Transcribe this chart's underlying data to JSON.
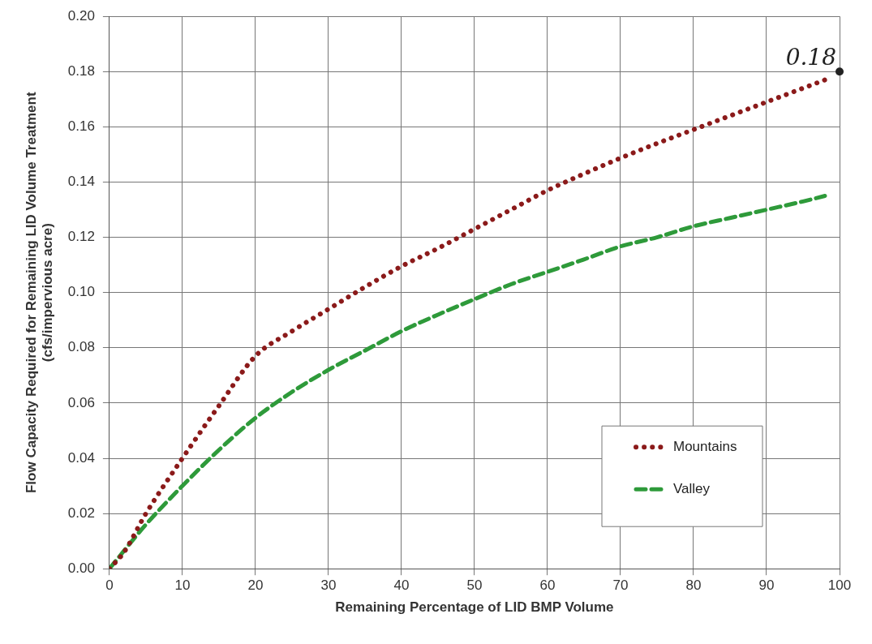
{
  "chart_data": {
    "type": "line",
    "xlabel": "Remaining Percentage of LID BMP Volume",
    "ylabel": "Flow Capacity Required for Remaining LID Volume Treatment\n(cfs/impervious acre)",
    "xlim": [
      0,
      100
    ],
    "xticks": [
      0,
      10,
      20,
      30,
      40,
      50,
      60,
      70,
      80,
      90,
      100
    ],
    "ylim": [
      0,
      0.2
    ],
    "yticks": [
      {
        "value": 0,
        "label": "0.00"
      },
      {
        "value": 0.02,
        "label": "0.02"
      },
      {
        "value": 0.04,
        "label": "0.04"
      },
      {
        "value": 0.06,
        "label": "0.06"
      },
      {
        "value": 0.08,
        "label": "0.08"
      },
      {
        "value": 0.1,
        "label": "0.10"
      },
      {
        "value": 0.12,
        "label": "0.12"
      },
      {
        "value": 0.14,
        "label": "0.14"
      },
      {
        "value": 0.16,
        "label": "0.16"
      },
      {
        "value": 0.18,
        "label": "0.18"
      },
      {
        "value": 0.2,
        "label": "0.20"
      }
    ],
    "grid": true,
    "legend": "bottom right",
    "marker": "none",
    "series": [
      {
        "name": "Mountains",
        "color": "#8b1a1a",
        "line_style": "dotted",
        "x": [
          0,
          2,
          5,
          10,
          15,
          20,
          25,
          30,
          35,
          40,
          45,
          50,
          55,
          60,
          65,
          70,
          75,
          80,
          85,
          90,
          95,
          98
        ],
        "values": [
          0,
          0.006,
          0.02,
          0.04,
          0.059,
          0.077,
          0.086,
          0.094,
          0.102,
          0.1095,
          0.116,
          0.123,
          0.13,
          0.137,
          0.143,
          0.1487,
          0.154,
          0.159,
          0.164,
          0.169,
          0.174,
          0.177
        ]
      },
      {
        "name": "Valley",
        "color": "#2e9a3a",
        "line_style": "dashed",
        "x": [
          0,
          5,
          10,
          15,
          20,
          25,
          30,
          35,
          40,
          45,
          50,
          55,
          60,
          65,
          70,
          75,
          80,
          85,
          90,
          95,
          98
        ],
        "values": [
          0,
          0.016,
          0.03,
          0.043,
          0.0546,
          0.064,
          0.072,
          0.079,
          0.086,
          0.092,
          0.0976,
          0.103,
          0.1075,
          0.112,
          0.1167,
          0.12,
          0.124,
          0.127,
          0.13,
          0.133,
          0.135
        ]
      }
    ],
    "annotations": [
      {
        "text": "0.18",
        "x": 100,
        "y": 0.18
      }
    ]
  }
}
